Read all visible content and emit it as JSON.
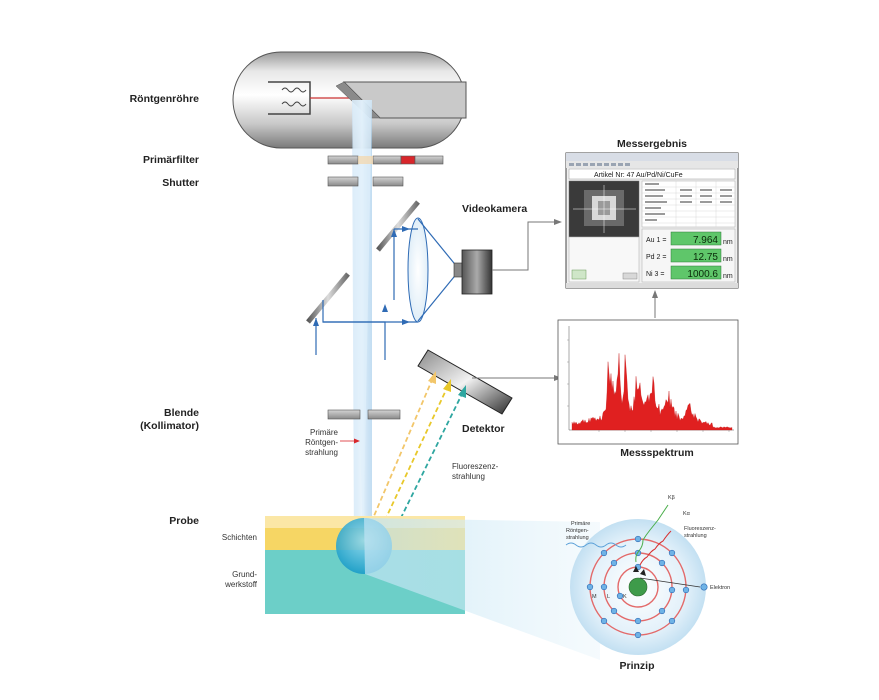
{
  "labels": {
    "tube": "Röntgenröhre",
    "primary_filter": "Primärfilter",
    "shutter": "Shutter",
    "videocamera": "Videokamera",
    "result": "Messergebnis",
    "aperture_line1": "Blende",
    "aperture_line2": "(Kollimator)",
    "detector": "Detektor",
    "spectrum": "Messspektrum",
    "sample": "Probe",
    "layers": "Schichten",
    "substrate_line1": "Grund-",
    "substrate_line2": "werkstoff",
    "primary_xray_line1": "Primäre",
    "primary_xray_line2": "Röntgen-",
    "primary_xray_line3": "strahlung",
    "fluorescence_line1": "Fluoreszenz-",
    "fluorescence_line2": "strahlung",
    "principle": "Prinzip"
  },
  "principle": {
    "primary_line1": "Primäre",
    "primary_line2": "Röntgen-",
    "primary_line3": "strahlung",
    "fluor_line1": "Fluoreszenz-",
    "fluor_line2": "strahlung",
    "k_beta": "Kβ",
    "k_alpha": "Kα",
    "electron": "Elektron",
    "shell_m": "M",
    "shell_l": "L",
    "shell_k": "K"
  },
  "screen": {
    "article": "Artikel Nr: 47  Au/Pd/Ni/CuFe",
    "results": [
      {
        "label": "Au 1 =",
        "value": "7.964",
        "unit": "nm"
      },
      {
        "label": "Pd 2 =",
        "value": "12.75",
        "unit": "nm"
      },
      {
        "label": "Ni 3 =",
        "value": "1000.6",
        "unit": "nm"
      }
    ]
  },
  "colors": {
    "beam": "#b8d8f0",
    "optics": "#2f6bb5",
    "filter_red": "#d8262b",
    "layer_yellow": "#f6d664",
    "substrate": "#6ccfc8",
    "spectrum": "#e02020",
    "fluor_arrow_1": "#f2c66a",
    "fluor_arrow_2": "#e8c82a",
    "fluor_arrow_3": "#2ea6a0"
  }
}
